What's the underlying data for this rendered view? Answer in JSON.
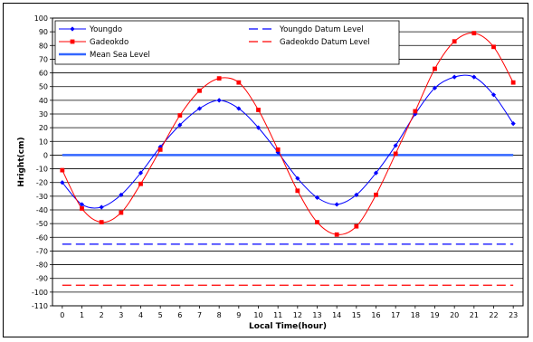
{
  "chart_data": {
    "type": "line",
    "title": "",
    "xlabel": "Local Time(hour)",
    "ylabel": "Hright(cm)",
    "xlim": [
      -0.5,
      23.5
    ],
    "ylim": [
      -110,
      100
    ],
    "x_ticks": [
      "0",
      "1",
      "2",
      "3",
      "4",
      "5",
      "6",
      "7",
      "8",
      "9",
      "10",
      "11",
      "12",
      "13",
      "14",
      "15",
      "16",
      "17",
      "18",
      "19",
      "20",
      "21",
      "22",
      "23"
    ],
    "y_ticks": [
      "100",
      "90",
      "80",
      "70",
      "60",
      "50",
      "40",
      "30",
      "20",
      "10",
      "0",
      "-10",
      "-20",
      "-30",
      "-40",
      "-50",
      "-60",
      "-70",
      "-80",
      "-90",
      "-100",
      "-110"
    ],
    "grid": "horizontal",
    "legend_position": "top-left",
    "x": [
      0,
      1,
      2,
      3,
      4,
      5,
      6,
      7,
      8,
      9,
      10,
      11,
      12,
      13,
      14,
      15,
      16,
      17,
      18,
      19,
      20,
      21,
      22,
      23
    ],
    "series": [
      {
        "name": "Youngdo",
        "color": "#0000ff",
        "marker": "diamond",
        "values": [
          -20,
          -36,
          -38,
          -29,
          -13,
          6,
          22,
          34,
          40,
          34,
          20,
          2,
          -17,
          -31,
          -36,
          -29,
          -13,
          7,
          30,
          49,
          57,
          57,
          44,
          23
        ]
      },
      {
        "name": "Gadeokdo",
        "color": "#ff0000",
        "marker": "square",
        "values": [
          -11,
          -39,
          -49,
          -42,
          -21,
          4,
          29,
          47,
          56,
          53,
          33,
          4,
          -26,
          -49,
          -58,
          -52,
          -29,
          1,
          32,
          63,
          83,
          89,
          79,
          53
        ]
      },
      {
        "name": "Mean Sea Level",
        "color": "#3366ff",
        "style": "thick",
        "level": 0
      },
      {
        "name": "Youngdo Datum Level",
        "color": "#0000ff",
        "style": "dashed",
        "level": -65
      },
      {
        "name": "Gadeokdo Datum Level",
        "color": "#ff0000",
        "style": "dashed",
        "level": -95
      }
    ]
  }
}
